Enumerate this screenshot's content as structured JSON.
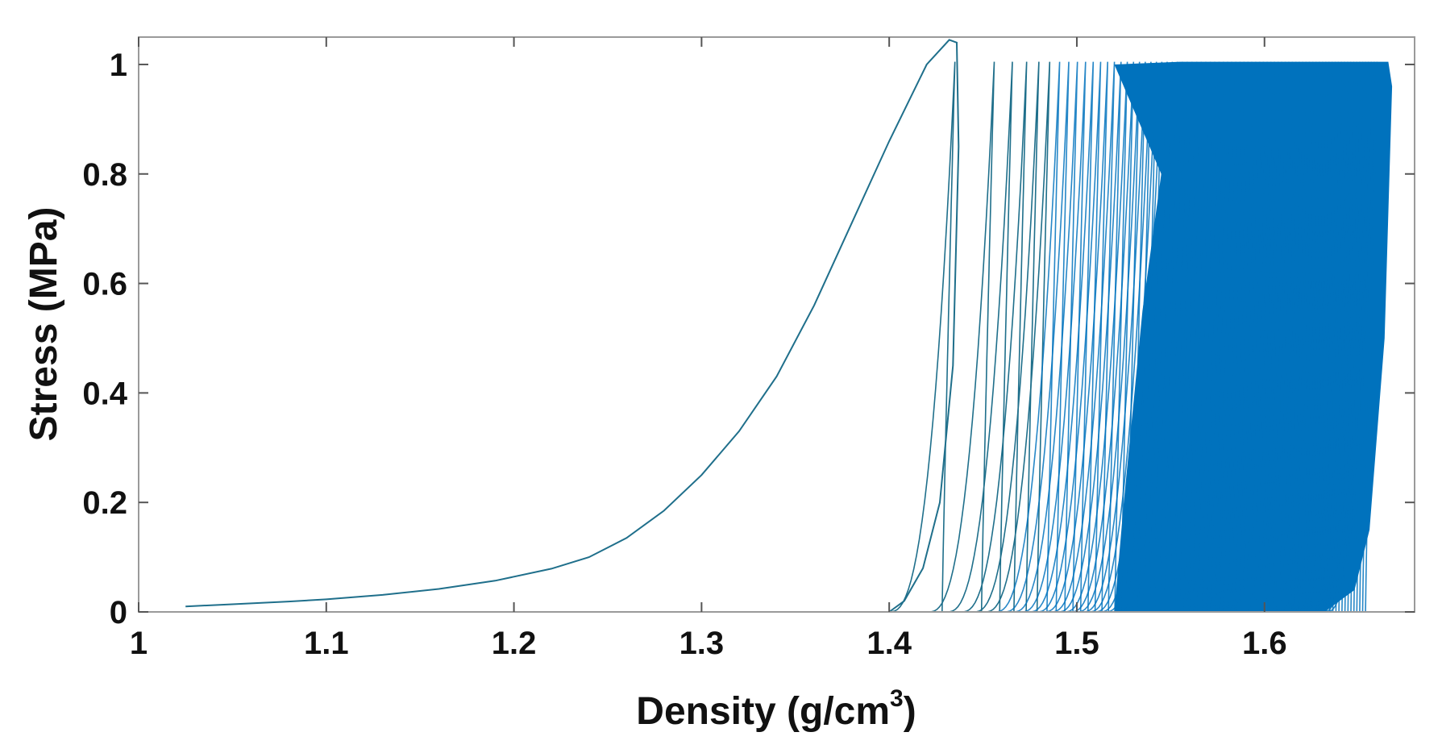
{
  "chart_data": {
    "type": "line",
    "title": "",
    "xlabel": "Density (g/cm",
    "xlabel_superscript": "3",
    "xlabel_suffix": ")",
    "ylabel": "Stress (MPa)",
    "xlim": [
      1.0,
      1.68
    ],
    "ylim": [
      0,
      1.05
    ],
    "xticks": [
      1,
      1.1,
      1.2,
      1.3,
      1.4,
      1.5,
      1.6
    ],
    "xtick_labels": [
      "1",
      "1.1",
      "1.2",
      "1.3",
      "1.4",
      "1.5",
      "1.6"
    ],
    "yticks": [
      0,
      0.2,
      0.4,
      0.6,
      0.8,
      1
    ],
    "ytick_labels": [
      "0",
      "0.2",
      "0.4",
      "0.6",
      "0.8",
      "1"
    ],
    "grid": false,
    "legend": "none",
    "colors": {
      "series": "#0072BD",
      "initial_curve": "#1f6f8b",
      "axes": "#999999"
    },
    "series": [
      {
        "points": [
          [
            1.025,
            0.01
          ],
          [
            1.05,
            0.014
          ],
          [
            1.08,
            0.019
          ],
          [
            1.1,
            0.023
          ],
          [
            1.13,
            0.031
          ],
          [
            1.16,
            0.042
          ],
          [
            1.19,
            0.057
          ],
          [
            1.22,
            0.079
          ],
          [
            1.24,
            0.1
          ],
          [
            1.26,
            0.135
          ],
          [
            1.28,
            0.185
          ],
          [
            1.3,
            0.25
          ],
          [
            1.32,
            0.33
          ],
          [
            1.34,
            0.43
          ],
          [
            1.36,
            0.56
          ],
          [
            1.38,
            0.71
          ],
          [
            1.4,
            0.86
          ],
          [
            1.42,
            1.0
          ],
          [
            1.432,
            1.045
          ],
          [
            1.436,
            1.04
          ],
          [
            1.437,
            0.85
          ],
          [
            1.434,
            0.45
          ],
          [
            1.427,
            0.2
          ],
          [
            1.418,
            0.08
          ],
          [
            1.408,
            0.02
          ],
          [
            1.4,
            0.0
          ]
        ]
      }
    ],
    "cyclic_loops": {
      "start_density_first": 1.4,
      "end_density": 1.665,
      "peak_stress": 1.005,
      "loop_count": 80,
      "dense_band_start_density": 1.52,
      "dense_band_end_density": 1.668
    }
  }
}
